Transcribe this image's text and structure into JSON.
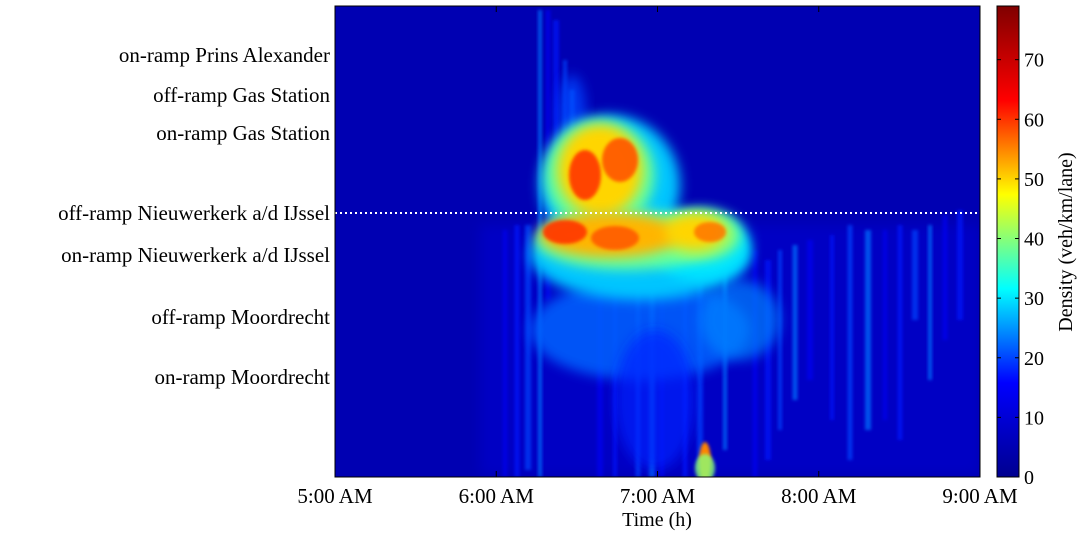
{
  "chart_data": {
    "type": "heatmap",
    "title": "",
    "xlabel": "Time (h)",
    "ylabel": "",
    "x_ticks": [
      "5:00 AM",
      "6:00 AM",
      "7:00 AM",
      "8:00 AM",
      "9:00 AM"
    ],
    "xlim": [
      "5:00 AM",
      "9:00 AM"
    ],
    "y_ramps": [
      "on-ramp Prins Alexander",
      "off-ramp Gas Station",
      "on-ramp Gas Station",
      "off-ramp Nieuwerkerk a/d IJssel",
      "on-ramp Nieuwerkerk a/d IJssel",
      "off-ramp Moordrecht",
      "on-ramp Moordrecht"
    ],
    "dotted_reference_line": "off-ramp Nieuwerkerk a/d IJssel",
    "colorbar": {
      "label": "Density (veh/km/lane)",
      "range": [
        0,
        79
      ],
      "ticks": [
        0,
        10,
        20,
        30,
        40,
        50,
        60,
        70
      ],
      "colormap": "jet"
    },
    "background_density": 5,
    "congestion_regions": [
      {
        "time_start": "6:30 AM",
        "time_end": "7:05 AM",
        "location_from": "on-ramp Gas Station",
        "location_to": "off-ramp Nieuwerkerk a/d IJssel",
        "peak_density": 60
      },
      {
        "time_start": "6:15 AM",
        "time_end": "7:35 AM",
        "location_from": "off-ramp Nieuwerkerk a/d IJssel",
        "location_to": "on-ramp Nieuwerkerk a/d IJssel",
        "peak_density": 55
      },
      {
        "time_start": "7:15 AM",
        "time_end": "7:20 AM",
        "location_from": "below on-ramp Moordrecht",
        "location_to": "bottom edge",
        "peak_density": 55
      }
    ]
  },
  "colors": {
    "jet_stops": [
      "#00008f",
      "#0000ff",
      "#00ffff",
      "#ffff00",
      "#ff0000",
      "#800000"
    ],
    "reference_line": "#ffffff"
  }
}
